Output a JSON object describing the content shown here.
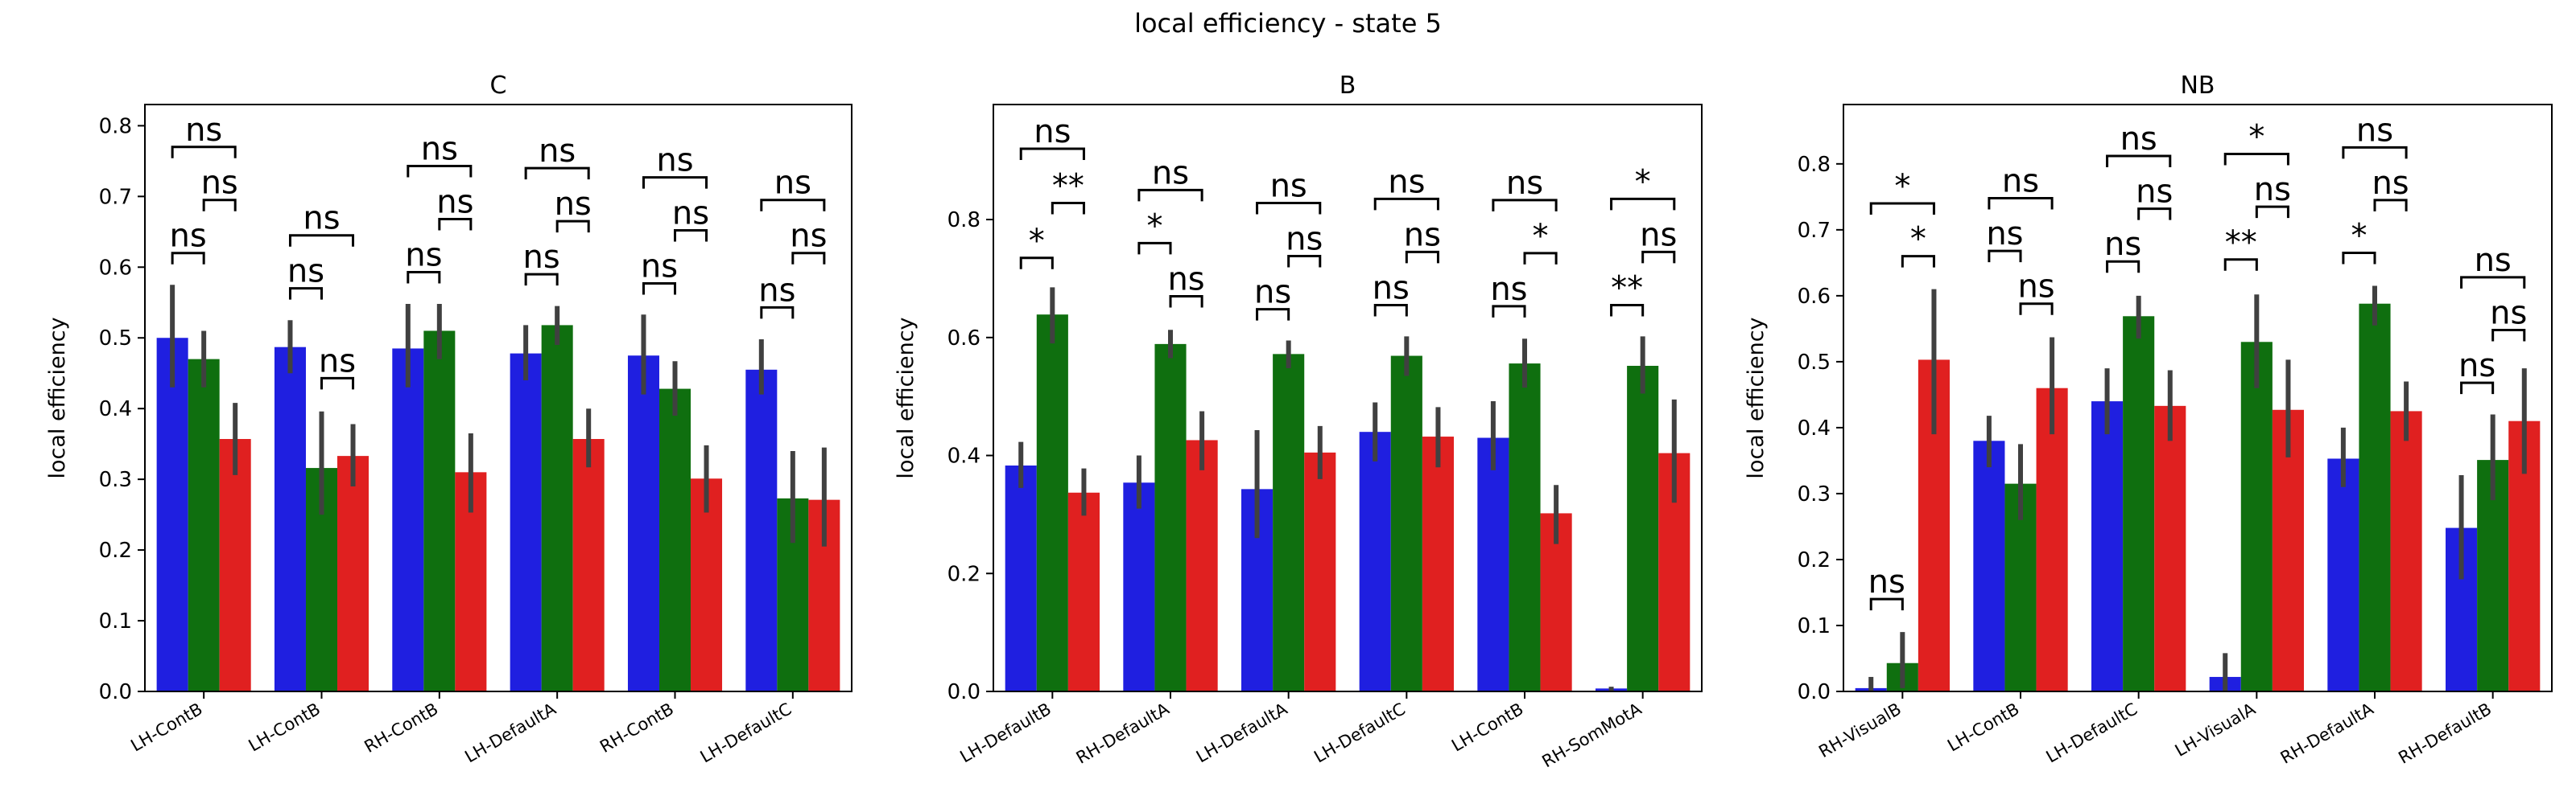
{
  "figure": {
    "title": "local efficiency - state 5"
  },
  "colors": {
    "series_a": "#1f1fe0",
    "series_b": "#0f6f0f",
    "series_c": "#e02020",
    "error": "#404040"
  },
  "chart_data": [
    {
      "type": "bar",
      "title": "C",
      "ylabel": "local efficiency",
      "ylim": [
        0,
        0.83
      ],
      "yticks": [
        0.0,
        0.1,
        0.2,
        0.3,
        0.4,
        0.5,
        0.6,
        0.7,
        0.8
      ],
      "ytick_labels": [
        "0.0",
        "0.1",
        "0.2",
        "0.3",
        "0.4",
        "0.5",
        "0.6",
        "0.7",
        "0.8"
      ],
      "categories": [
        "LH-ContB",
        "LH-ContB",
        "RH-ContB",
        "LH-DefaultA",
        "RH-ContB",
        "LH-DefaultC"
      ],
      "series": [
        {
          "color": "#1f1fe0",
          "values": [
            0.5,
            0.487,
            0.485,
            0.478,
            0.475,
            0.455
          ],
          "err_low": [
            0.43,
            0.45,
            0.43,
            0.44,
            0.42,
            0.42
          ],
          "err_high": [
            0.575,
            0.525,
            0.548,
            0.518,
            0.533,
            0.498
          ]
        },
        {
          "color": "#0f6f0f",
          "values": [
            0.47,
            0.316,
            0.51,
            0.518,
            0.428,
            0.273
          ],
          "err_low": [
            0.43,
            0.25,
            0.47,
            0.49,
            0.39,
            0.21
          ],
          "err_high": [
            0.51,
            0.396,
            0.548,
            0.545,
            0.467,
            0.34
          ]
        },
        {
          "color": "#e02020",
          "values": [
            0.357,
            0.333,
            0.31,
            0.357,
            0.301,
            0.271
          ],
          "err_low": [
            0.306,
            0.29,
            0.253,
            0.317,
            0.253,
            0.205
          ],
          "err_high": [
            0.408,
            0.378,
            0.365,
            0.4,
            0.348,
            0.345
          ]
        }
      ],
      "annotations": [
        {
          "category": 0,
          "from": 0,
          "to": 1,
          "y": 0.62,
          "text": "ns"
        },
        {
          "category": 0,
          "from": 1,
          "to": 2,
          "y": 0.695,
          "text": "ns"
        },
        {
          "category": 0,
          "from": 0,
          "to": 2,
          "y": 0.77,
          "text": "ns"
        },
        {
          "category": 1,
          "from": 0,
          "to": 1,
          "y": 0.57,
          "text": "ns"
        },
        {
          "category": 1,
          "from": 1,
          "to": 2,
          "y": 0.443,
          "text": "ns"
        },
        {
          "category": 1,
          "from": 0,
          "to": 2,
          "y": 0.645,
          "text": "ns"
        },
        {
          "category": 2,
          "from": 0,
          "to": 1,
          "y": 0.593,
          "text": "ns"
        },
        {
          "category": 2,
          "from": 1,
          "to": 2,
          "y": 0.668,
          "text": "ns"
        },
        {
          "category": 2,
          "from": 0,
          "to": 2,
          "y": 0.743,
          "text": "ns"
        },
        {
          "category": 3,
          "from": 0,
          "to": 1,
          "y": 0.59,
          "text": "ns"
        },
        {
          "category": 3,
          "from": 1,
          "to": 2,
          "y": 0.665,
          "text": "ns"
        },
        {
          "category": 3,
          "from": 0,
          "to": 2,
          "y": 0.74,
          "text": "ns"
        },
        {
          "category": 4,
          "from": 0,
          "to": 1,
          "y": 0.577,
          "text": "ns"
        },
        {
          "category": 4,
          "from": 1,
          "to": 2,
          "y": 0.652,
          "text": "ns"
        },
        {
          "category": 4,
          "from": 0,
          "to": 2,
          "y": 0.727,
          "text": "ns"
        },
        {
          "category": 5,
          "from": 0,
          "to": 1,
          "y": 0.543,
          "text": "ns"
        },
        {
          "category": 5,
          "from": 1,
          "to": 2,
          "y": 0.62,
          "text": "ns"
        },
        {
          "category": 5,
          "from": 0,
          "to": 2,
          "y": 0.695,
          "text": "ns"
        }
      ]
    },
    {
      "type": "bar",
      "title": "B",
      "ylabel": "local efficiency",
      "ylim": [
        0,
        0.995
      ],
      "yticks": [
        0.0,
        0.2,
        0.4,
        0.6,
        0.8
      ],
      "ytick_labels": [
        "0.0",
        "0.2",
        "0.4",
        "0.6",
        "0.8"
      ],
      "categories": [
        "LH-DefaultB",
        "RH-DefaultA",
        "LH-DefaultA",
        "LH-DefaultC",
        "LH-ContB",
        "RH-SomMotA"
      ],
      "series": [
        {
          "color": "#1f1fe0",
          "values": [
            0.383,
            0.354,
            0.343,
            0.44,
            0.43,
            0.005
          ],
          "err_low": [
            0.345,
            0.31,
            0.26,
            0.39,
            0.375,
            0.0
          ],
          "err_high": [
            0.423,
            0.4,
            0.443,
            0.49,
            0.492,
            0.008
          ]
        },
        {
          "color": "#0f6f0f",
          "values": [
            0.639,
            0.589,
            0.572,
            0.569,
            0.556,
            0.552
          ],
          "err_low": [
            0.59,
            0.565,
            0.548,
            0.535,
            0.515,
            0.505
          ],
          "err_high": [
            0.685,
            0.613,
            0.595,
            0.602,
            0.598,
            0.602
          ]
        },
        {
          "color": "#e02020",
          "values": [
            0.337,
            0.426,
            0.405,
            0.432,
            0.302,
            0.404
          ],
          "err_low": [
            0.298,
            0.375,
            0.36,
            0.38,
            0.25,
            0.32
          ],
          "err_high": [
            0.378,
            0.475,
            0.45,
            0.482,
            0.35,
            0.495
          ]
        }
      ],
      "annotations": [
        {
          "category": 0,
          "from": 0,
          "to": 1,
          "y": 0.735,
          "text": "*"
        },
        {
          "category": 0,
          "from": 1,
          "to": 2,
          "y": 0.828,
          "text": "**"
        },
        {
          "category": 0,
          "from": 0,
          "to": 2,
          "y": 0.92,
          "text": "ns"
        },
        {
          "category": 1,
          "from": 0,
          "to": 1,
          "y": 0.76,
          "text": "*"
        },
        {
          "category": 1,
          "from": 1,
          "to": 2,
          "y": 0.67,
          "text": "ns"
        },
        {
          "category": 1,
          "from": 0,
          "to": 2,
          "y": 0.85,
          "text": "ns"
        },
        {
          "category": 2,
          "from": 0,
          "to": 1,
          "y": 0.648,
          "text": "ns"
        },
        {
          "category": 2,
          "from": 1,
          "to": 2,
          "y": 0.738,
          "text": "ns"
        },
        {
          "category": 2,
          "from": 0,
          "to": 2,
          "y": 0.828,
          "text": "ns"
        },
        {
          "category": 3,
          "from": 0,
          "to": 1,
          "y": 0.655,
          "text": "ns"
        },
        {
          "category": 3,
          "from": 1,
          "to": 2,
          "y": 0.745,
          "text": "ns"
        },
        {
          "category": 3,
          "from": 0,
          "to": 2,
          "y": 0.835,
          "text": "ns"
        },
        {
          "category": 4,
          "from": 0,
          "to": 1,
          "y": 0.653,
          "text": "ns"
        },
        {
          "category": 4,
          "from": 1,
          "to": 2,
          "y": 0.743,
          "text": "*"
        },
        {
          "category": 4,
          "from": 0,
          "to": 2,
          "y": 0.833,
          "text": "ns"
        },
        {
          "category": 5,
          "from": 0,
          "to": 1,
          "y": 0.655,
          "text": "**"
        },
        {
          "category": 5,
          "from": 1,
          "to": 2,
          "y": 0.745,
          "text": "ns"
        },
        {
          "category": 5,
          "from": 0,
          "to": 2,
          "y": 0.835,
          "text": "*"
        }
      ]
    },
    {
      "type": "bar",
      "title": "NB",
      "ylabel": "local efficiency",
      "ylim": [
        0,
        0.89
      ],
      "yticks": [
        0.0,
        0.1,
        0.2,
        0.3,
        0.4,
        0.5,
        0.6,
        0.7,
        0.8
      ],
      "ytick_labels": [
        "0.0",
        "0.1",
        "0.2",
        "0.3",
        "0.4",
        "0.5",
        "0.6",
        "0.7",
        "0.8"
      ],
      "categories": [
        "RH-VisualB",
        "LH-ContB",
        "LH-DefaultC",
        "LH-VisualA",
        "RH-DefaultA",
        "RH-DefaultB"
      ],
      "series": [
        {
          "color": "#1f1fe0",
          "values": [
            0.005,
            0.38,
            0.44,
            0.022,
            0.353,
            0.248
          ],
          "err_low": [
            0.0,
            0.34,
            0.39,
            0.0,
            0.31,
            0.17
          ],
          "err_high": [
            0.022,
            0.418,
            0.49,
            0.058,
            0.4,
            0.328
          ]
        },
        {
          "color": "#0f6f0f",
          "values": [
            0.043,
            0.315,
            0.569,
            0.53,
            0.588,
            0.351
          ],
          "err_low": [
            0.005,
            0.26,
            0.535,
            0.46,
            0.555,
            0.29
          ],
          "err_high": [
            0.09,
            0.375,
            0.6,
            0.602,
            0.615,
            0.42
          ]
        },
        {
          "color": "#e02020",
          "values": [
            0.503,
            0.46,
            0.433,
            0.427,
            0.425,
            0.41
          ],
          "err_low": [
            0.39,
            0.39,
            0.38,
            0.355,
            0.38,
            0.33
          ],
          "err_high": [
            0.61,
            0.537,
            0.487,
            0.503,
            0.47,
            0.49
          ]
        }
      ],
      "annotations": [
        {
          "category": 0,
          "from": 0,
          "to": 1,
          "y": 0.14,
          "text": "ns"
        },
        {
          "category": 0,
          "from": 1,
          "to": 2,
          "y": 0.66,
          "text": "*"
        },
        {
          "category": 0,
          "from": 0,
          "to": 2,
          "y": 0.74,
          "text": "*"
        },
        {
          "category": 1,
          "from": 0,
          "to": 1,
          "y": 0.668,
          "text": "ns"
        },
        {
          "category": 1,
          "from": 1,
          "to": 2,
          "y": 0.588,
          "text": "ns"
        },
        {
          "category": 1,
          "from": 0,
          "to": 2,
          "y": 0.748,
          "text": "ns"
        },
        {
          "category": 2,
          "from": 0,
          "to": 1,
          "y": 0.652,
          "text": "ns"
        },
        {
          "category": 2,
          "from": 1,
          "to": 2,
          "y": 0.732,
          "text": "ns"
        },
        {
          "category": 2,
          "from": 0,
          "to": 2,
          "y": 0.812,
          "text": "ns"
        },
        {
          "category": 3,
          "from": 0,
          "to": 1,
          "y": 0.655,
          "text": "**"
        },
        {
          "category": 3,
          "from": 1,
          "to": 2,
          "y": 0.735,
          "text": "ns"
        },
        {
          "category": 3,
          "from": 0,
          "to": 2,
          "y": 0.815,
          "text": "*"
        },
        {
          "category": 4,
          "from": 0,
          "to": 1,
          "y": 0.665,
          "text": "*"
        },
        {
          "category": 4,
          "from": 1,
          "to": 2,
          "y": 0.745,
          "text": "ns"
        },
        {
          "category": 4,
          "from": 0,
          "to": 2,
          "y": 0.825,
          "text": "ns"
        },
        {
          "category": 5,
          "from": 0,
          "to": 1,
          "y": 0.468,
          "text": "ns"
        },
        {
          "category": 5,
          "from": 1,
          "to": 2,
          "y": 0.548,
          "text": "ns"
        },
        {
          "category": 5,
          "from": 0,
          "to": 2,
          "y": 0.628,
          "text": "ns"
        }
      ]
    }
  ]
}
